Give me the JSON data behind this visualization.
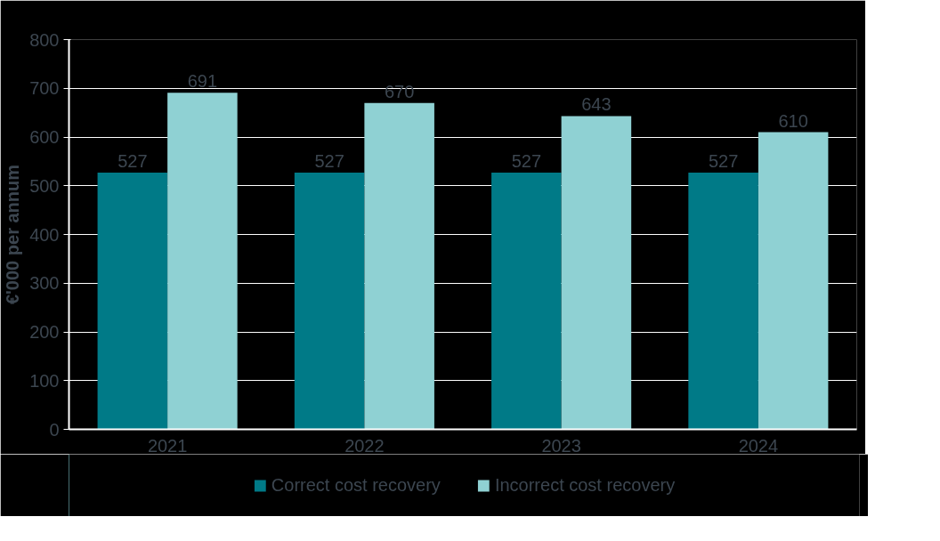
{
  "chart_data": {
    "type": "bar",
    "ylabel": "€'000 per annum",
    "categories": [
      "2021",
      "2022",
      "2023",
      "2024"
    ],
    "series": [
      {
        "name": "Correct cost recovery",
        "color": "#007a87",
        "values": [
          527,
          527,
          527,
          527
        ]
      },
      {
        "name": "Incorrect cost recovery",
        "color": "#8fd1d3",
        "values": [
          691,
          670,
          643,
          610
        ]
      }
    ],
    "ylim": [
      0,
      800
    ],
    "yticks": [
      0,
      100,
      200,
      300,
      400,
      500,
      600,
      700,
      800
    ],
    "grid": "y",
    "legend": "bottom",
    "data_labels": true
  }
}
